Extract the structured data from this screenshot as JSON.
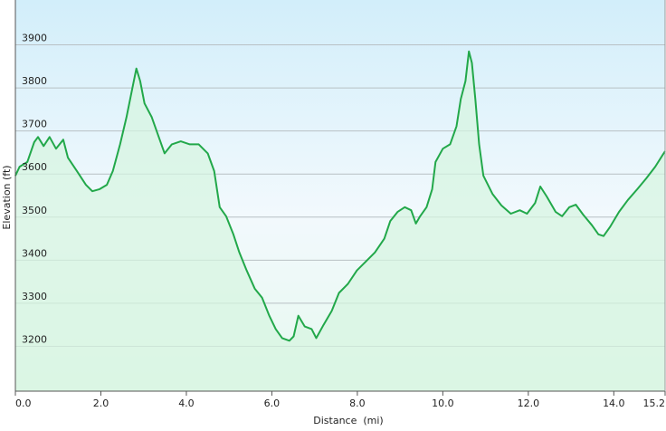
{
  "chart_data": {
    "type": "area",
    "title": "",
    "xlabel": "Distance  (mi)",
    "ylabel": "Elevation (ft)",
    "xlim": [
      0,
      15.2
    ],
    "ylim": [
      3100,
      4000
    ],
    "grid": true,
    "x_ticks": [
      "0.0",
      "2.0",
      "4.0",
      "6.0",
      "8.0",
      "10.0",
      "12.0",
      "14.0",
      "15.2"
    ],
    "x_tick_values": [
      0,
      2,
      4,
      6,
      8,
      10,
      12,
      14,
      15.2
    ],
    "y_ticks": [
      "3200",
      "3300",
      "3400",
      "3500",
      "3600",
      "3700",
      "3800",
      "3900"
    ],
    "y_tick_values": [
      3200,
      3300,
      3400,
      3500,
      3600,
      3700,
      3800,
      3900
    ],
    "line_color": "#22a84a",
    "fill_color": "#d6f5e0",
    "series": [
      {
        "x": [
          0,
          0.1,
          0.28,
          0.44,
          0.53,
          0.66,
          0.8,
          0.95,
          1.12,
          1.23,
          1.44,
          1.65,
          1.8,
          1.97,
          2.14,
          2.28,
          2.45,
          2.6,
          2.75,
          2.83,
          2.92,
          3.02,
          3.19,
          3.34,
          3.49,
          3.66,
          3.87,
          4.08,
          4.29,
          4.5,
          4.65,
          4.78,
          4.93,
          5.1,
          5.24,
          5.41,
          5.6,
          5.77,
          5.94,
          6.09,
          6.24,
          6.41,
          6.51,
          6.62,
          6.77,
          6.93,
          7.04,
          7.21,
          7.4,
          7.57,
          7.78,
          7.99,
          8.2,
          8.41,
          8.63,
          8.77,
          8.94,
          9.11,
          9.26,
          9.37,
          9.47,
          9.62,
          9.75,
          9.83,
          10.0,
          10.17,
          10.32,
          10.42,
          10.53,
          10.61,
          10.68,
          10.76,
          10.85,
          10.95,
          11.16,
          11.37,
          11.59,
          11.8,
          11.97,
          12.16,
          12.28,
          12.43,
          12.64,
          12.79,
          12.96,
          13.11,
          13.28,
          13.49,
          13.64,
          13.76,
          13.91,
          14.12,
          14.33,
          14.55,
          14.76,
          14.97,
          15.14,
          15.2
        ],
        "y": [
          3596,
          3617,
          3628,
          3674,
          3686,
          3665,
          3686,
          3659,
          3680,
          3638,
          3607,
          3575,
          3560,
          3565,
          3575,
          3607,
          3669,
          3732,
          3806,
          3845,
          3816,
          3764,
          3732,
          3690,
          3648,
          3669,
          3676,
          3669,
          3669,
          3648,
          3607,
          3523,
          3502,
          3460,
          3418,
          3376,
          3334,
          3313,
          3271,
          3240,
          3219,
          3213,
          3223,
          3271,
          3246,
          3240,
          3219,
          3250,
          3282,
          3324,
          3345,
          3376,
          3397,
          3418,
          3450,
          3491,
          3512,
          3523,
          3516,
          3485,
          3502,
          3523,
          3565,
          3628,
          3659,
          3669,
          3711,
          3774,
          3816,
          3885,
          3858,
          3774,
          3669,
          3596,
          3554,
          3527,
          3508,
          3516,
          3508,
          3533,
          3571,
          3548,
          3512,
          3502,
          3523,
          3529,
          3506,
          3481,
          3460,
          3456,
          3477,
          3512,
          3540,
          3565,
          3590,
          3617,
          3644,
          3653
        ]
      }
    ]
  }
}
